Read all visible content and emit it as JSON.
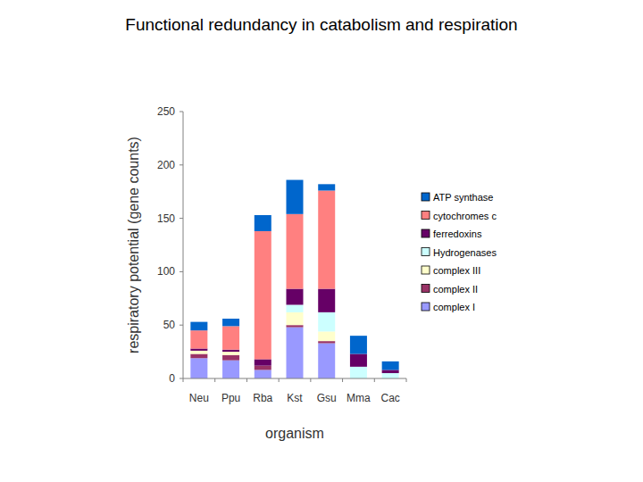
{
  "chart_data": {
    "type": "bar",
    "stacked": true,
    "title": "Functional redundancy in catabolism and respiration",
    "y_label": "respiratory potential (gene counts)",
    "x_label": "organism",
    "categories": [
      "Neu",
      "Ppu",
      "Rba",
      "Kst",
      "Gsu",
      "Mma",
      "Cac"
    ],
    "series": [
      {
        "name": "complex I",
        "color": "#9999ff",
        "values": [
          19,
          17,
          8,
          48,
          33,
          0,
          0
        ]
      },
      {
        "name": "complex II",
        "color": "#993366",
        "values": [
          4,
          5,
          4,
          2,
          2,
          0,
          0
        ]
      },
      {
        "name": "complex III",
        "color": "#ffffcc",
        "values": [
          3,
          3,
          0,
          12,
          9,
          0,
          0
        ]
      },
      {
        "name": "Hydrogenases",
        "color": "#ccffff",
        "values": [
          0,
          0,
          0,
          7,
          18,
          11,
          5
        ]
      },
      {
        "name": "ferredoxins",
        "color": "#660066",
        "values": [
          2,
          2,
          6,
          15,
          22,
          12,
          3
        ]
      },
      {
        "name": "cytochromes c",
        "color": "#ff8080",
        "values": [
          17,
          22,
          120,
          70,
          92,
          0,
          0
        ]
      },
      {
        "name": "ATP synthase",
        "color": "#0066cc",
        "values": [
          8,
          7,
          15,
          32,
          6,
          17,
          8
        ]
      }
    ],
    "ylim": [
      0,
      250
    ],
    "yticks": [
      0,
      50,
      100,
      150,
      200,
      250
    ],
    "grid": false,
    "legend": "right"
  }
}
